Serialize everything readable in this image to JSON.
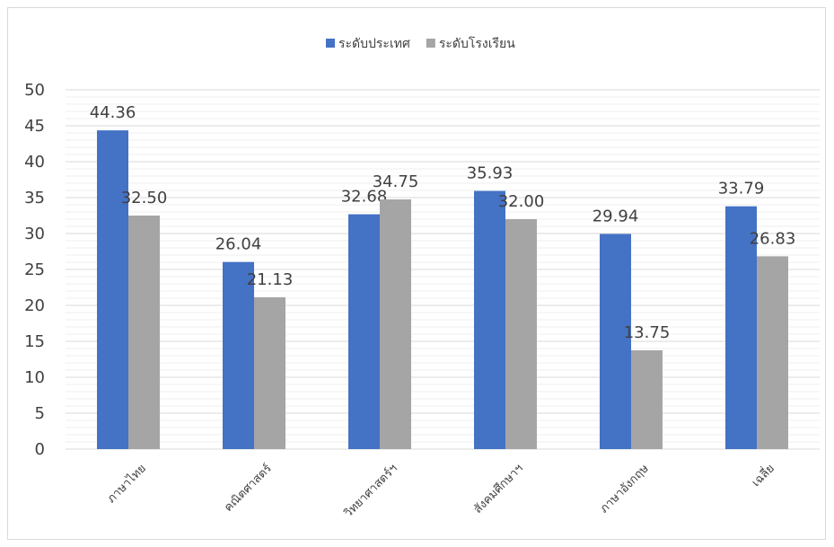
{
  "chart_data": {
    "type": "bar",
    "categories": [
      "ภาษาไทย",
      "คณิตศาสตร์",
      "วิทยาศาสตร์ฯ",
      "สังคมศึกษาฯ",
      "ภาษาอังกฤษ",
      "เฉลี่ย"
    ],
    "series": [
      {
        "name": "ระดับประเทศ",
        "color": "#4472c4",
        "values": [
          44.36,
          26.04,
          32.68,
          35.93,
          29.94,
          33.79
        ],
        "labels": [
          "44.36",
          "26.04",
          "32.68",
          "35.93",
          "29.94",
          "33.79"
        ]
      },
      {
        "name": "ระดับโรงเรียน",
        "color": "#a5a5a5",
        "values": [
          32.5,
          21.13,
          34.75,
          32.0,
          13.75,
          26.83
        ],
        "labels": [
          "32.50",
          "21.13",
          "34.75",
          "32.00",
          "13.75",
          "26.83"
        ]
      }
    ],
    "ylim": [
      0,
      50
    ],
    "yticks": [
      "0",
      "5",
      "10",
      "15",
      "20",
      "25",
      "30",
      "35",
      "40",
      "45",
      "50"
    ],
    "grid": true,
    "legend_position": "top"
  }
}
